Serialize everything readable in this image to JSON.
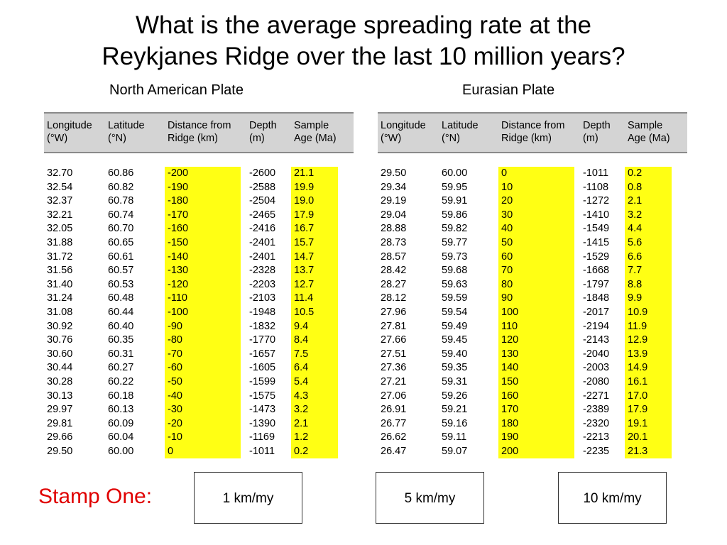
{
  "title": {
    "line1": "What is the average spreading rate at the",
    "line2": "Reykjanes Ridge over the last 10 million years?"
  },
  "headers": {
    "longitude": [
      "Longitude",
      "(°W)"
    ],
    "latitude": [
      "Latitude",
      "(°N)"
    ],
    "distance": [
      "Distance from",
      "Ridge (km)"
    ],
    "depth": [
      "Depth",
      "(m)"
    ],
    "age": [
      "Sample",
      "Age (Ma)"
    ]
  },
  "highlight_color": "#ffff14",
  "stamp_color": "#e00000",
  "tables": [
    {
      "plate": "North American Plate",
      "longitude": [
        "32.70",
        "32.54",
        "32.37",
        "32.21",
        "32.05",
        "31.88",
        "31.72",
        "31.56",
        "31.40",
        "31.24",
        "31.08",
        "30.92",
        "30.76",
        "30.60",
        "30.44",
        "30.28",
        "30.13",
        "29.97",
        "29.81",
        "29.66",
        "29.50"
      ],
      "latitude": [
        "60.86",
        "60.82",
        "60.78",
        "60.74",
        "60.70",
        "60.65",
        "60.61",
        "60.57",
        "60.53",
        "60.48",
        "60.44",
        "60.40",
        "60.35",
        "60.31",
        "60.27",
        "60.22",
        "60.18",
        "60.13",
        "60.09",
        "60.04",
        "60.00"
      ],
      "distance": [
        "-200",
        "-190",
        "-180",
        "-170",
        "-160",
        "-150",
        "-140",
        "-130",
        "-120",
        "-110",
        "-100",
        "-90",
        "-80",
        "-70",
        "-60",
        "-50",
        "-40",
        "-30",
        "-20",
        "-10",
        "0"
      ],
      "depth": [
        "-2600",
        "-2588",
        "-2504",
        "-2465",
        "-2416",
        "-2401",
        "-2401",
        "-2328",
        "-2203",
        "-2103",
        "-1948",
        "-1832",
        "-1770",
        "-1657",
        "-1605",
        "-1599",
        "-1575",
        "-1473",
        "-1390",
        "-1169",
        "-1011"
      ],
      "age": [
        "21.1",
        "19.9",
        "19.0",
        "17.9",
        "16.7",
        "15.7",
        "14.7",
        "13.7",
        "12.7",
        "11.4",
        "10.5",
        "9.4",
        "8.4",
        "7.5",
        "6.4",
        "5.4",
        "4.3",
        "3.2",
        "2.1",
        "1.2",
        "0.2"
      ]
    },
    {
      "plate": "Eurasian Plate",
      "longitude": [
        "29.50",
        "29.34",
        "29.19",
        "29.04",
        "28.88",
        "28.73",
        "28.57",
        "28.42",
        "28.27",
        "28.12",
        "27.96",
        "27.81",
        "27.66",
        "27.51",
        "27.36",
        "27.21",
        "27.06",
        "26.91",
        "26.77",
        "26.62",
        "26.47"
      ],
      "latitude": [
        "60.00",
        "59.95",
        "59.91",
        "59.86",
        "59.82",
        "59.77",
        "59.73",
        "59.68",
        "59.63",
        "59.59",
        "59.54",
        "59.49",
        "59.45",
        "59.40",
        "59.35",
        "59.31",
        "59.26",
        "59.21",
        "59.16",
        "59.11",
        "59.07"
      ],
      "distance": [
        "0",
        "10",
        "20",
        "30",
        "40",
        "50",
        "60",
        "70",
        "80",
        "90",
        "100",
        "110",
        "120",
        "130",
        "140",
        "150",
        "160",
        "170",
        "180",
        "190",
        "200"
      ],
      "depth": [
        "-1011",
        "-1108",
        "-1272",
        "-1410",
        "-1549",
        "-1415",
        "-1529",
        "-1668",
        "-1797",
        "-1848",
        "-2017",
        "-2194",
        "-2143",
        "-2040",
        "-2003",
        "-2080",
        "-2271",
        "-2389",
        "-2320",
        "-2213",
        "-2235"
      ],
      "age": [
        "0.2",
        "0.8",
        "2.1",
        "3.2",
        "4.4",
        "5.6",
        "6.6",
        "7.7",
        "8.8",
        "9.9",
        "10.9",
        "11.9",
        "12.9",
        "13.9",
        "14.9",
        "16.1",
        "17.0",
        "17.9",
        "19.1",
        "20.1",
        "21.3"
      ]
    }
  ],
  "stamp": {
    "label": "Stamp One:",
    "options": [
      "1 km/my",
      "5 km/my",
      "10 km/my"
    ]
  }
}
